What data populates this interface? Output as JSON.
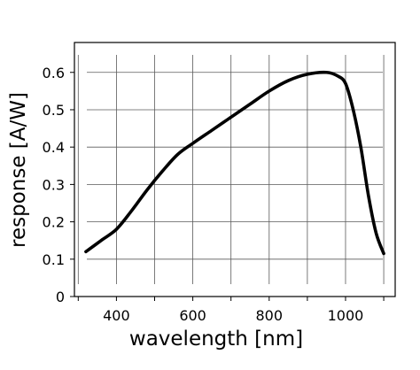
{
  "chart_data": {
    "type": "line",
    "title": "",
    "xlabel": "wavelength [nm]",
    "ylabel": "response [A/W]",
    "xlim": [
      290,
      1130
    ],
    "ylim": [
      0,
      0.68
    ],
    "x_ticks": [
      400,
      600,
      800,
      1000
    ],
    "x_tick_labels": [
      "400",
      "600",
      "800",
      "1000"
    ],
    "y_ticks": [
      0,
      0.1,
      0.2,
      0.3,
      0.4,
      0.5,
      0.6
    ],
    "y_tick_labels": [
      "0",
      "0.1",
      "0.2",
      "0.3",
      "0.4",
      "0.5",
      "0.6"
    ],
    "grid": true,
    "legend": "none",
    "line_color": "#000000",
    "series": [
      {
        "x": [
          320,
          360,
          400,
          440,
          480,
          520,
          560,
          600,
          650,
          700,
          750,
          800,
          850,
          900,
          950,
          980,
          1000,
          1020,
          1040,
          1060,
          1080,
          1100
        ],
        "y": [
          0.12,
          0.15,
          0.18,
          0.23,
          0.285,
          0.335,
          0.38,
          0.41,
          0.445,
          0.48,
          0.515,
          0.55,
          0.578,
          0.595,
          0.6,
          0.59,
          0.57,
          0.5,
          0.4,
          0.27,
          0.17,
          0.115
        ]
      }
    ]
  }
}
